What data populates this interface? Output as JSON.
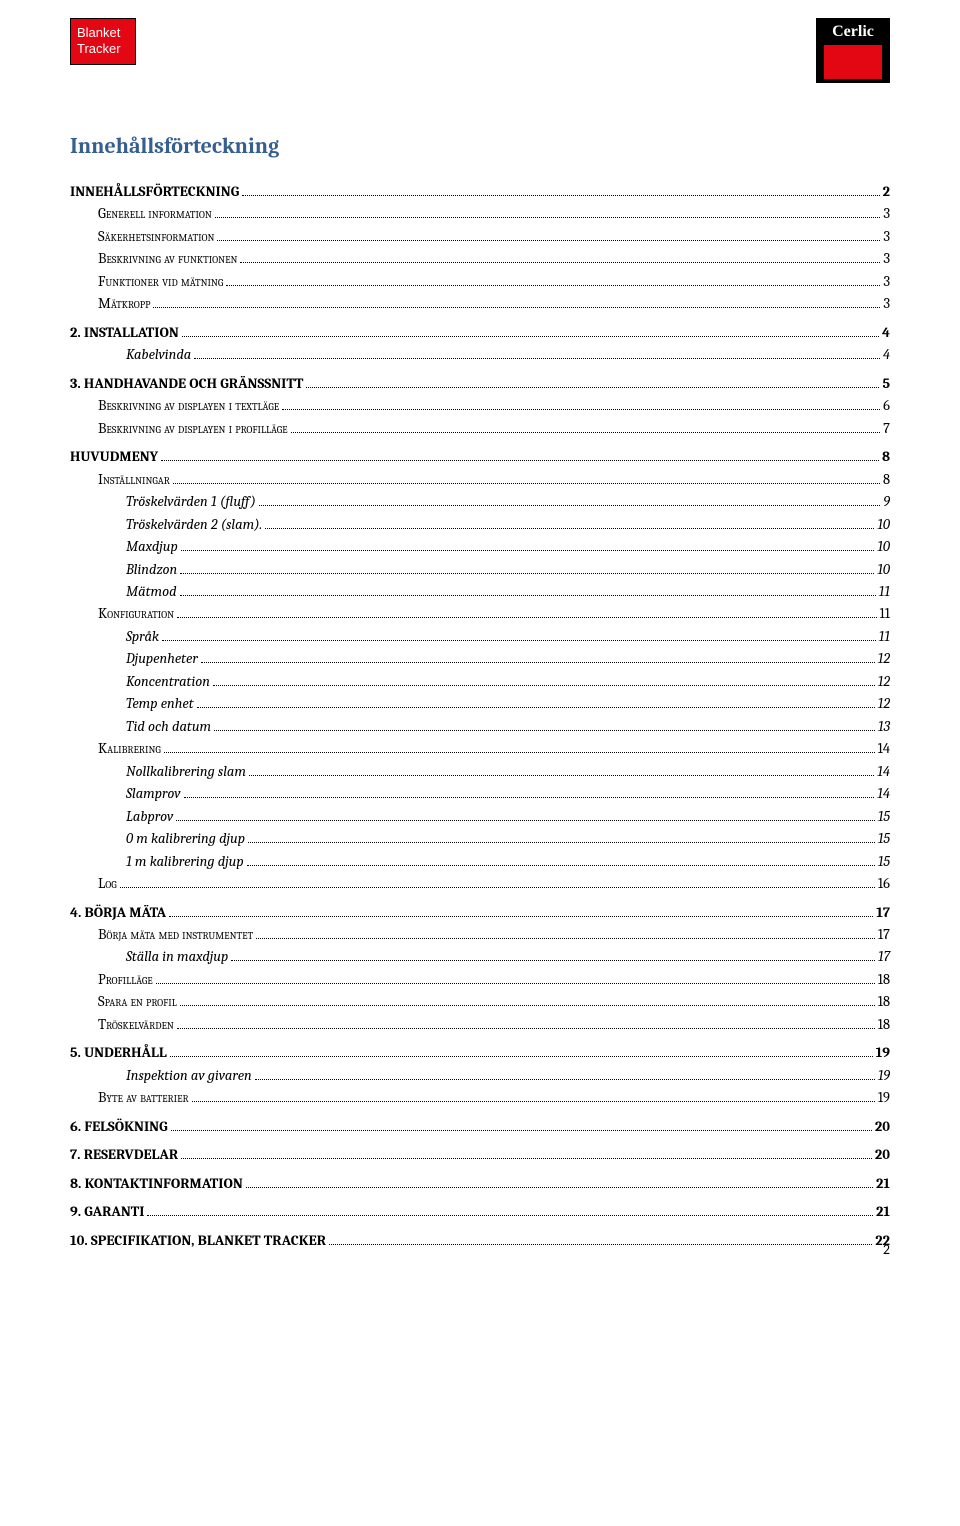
{
  "header": {
    "blanket_line1": "Blanket",
    "blanket_line2": "Tracker",
    "logo_text": "Cerlic"
  },
  "title": "Innehållsförteckning",
  "toc": [
    {
      "level": 1,
      "label": "INNEHÅLLSFÖRTECKNING",
      "page": "2"
    },
    {
      "level": 2,
      "label": "Generell information",
      "page": "3"
    },
    {
      "level": 2,
      "label": "Säkerhetsinformation",
      "page": "3"
    },
    {
      "level": 2,
      "label": "Beskrivning av funktionen",
      "page": "3"
    },
    {
      "level": 2,
      "label": "Funktioner vid mätning",
      "page": "3"
    },
    {
      "level": 2,
      "label": "Mätkropp",
      "page": "3"
    },
    {
      "level": 1,
      "label": "2. INSTALLATION",
      "page": "4"
    },
    {
      "level": 3,
      "label": "Kabelvinda",
      "page": " 4"
    },
    {
      "level": 1,
      "label": "3. HANDHAVANDE OCH GRÄNSSNITT",
      "page": "5"
    },
    {
      "level": 2,
      "label": "Beskrivning av displayen i textläge",
      "page": "6"
    },
    {
      "level": 2,
      "label": "Beskrivning av displayen i profilläge",
      "page": "7"
    },
    {
      "level": 1,
      "label": "HUVUDMENY",
      "page": "8"
    },
    {
      "level": 2,
      "label": "Inställningar",
      "page": "8"
    },
    {
      "level": 3,
      "label": "Tröskelvärden 1 (fluff)",
      "page": " 9"
    },
    {
      "level": 3,
      "label": "Tröskelvärden 2 (slam). ",
      "page": "10"
    },
    {
      "level": 3,
      "label": "Maxdjup",
      "page": "10"
    },
    {
      "level": 3,
      "label": "Blindzon",
      "page": "10"
    },
    {
      "level": 3,
      "label": "Mätmod",
      "page": "11"
    },
    {
      "level": 2,
      "label": "Konfiguration",
      "page": "11"
    },
    {
      "level": 3,
      "label": "Språk",
      "page": "11"
    },
    {
      "level": 3,
      "label": "Djupenheter",
      "page": "12"
    },
    {
      "level": 3,
      "label": "Koncentration",
      "page": "12"
    },
    {
      "level": 3,
      "label": "Temp enhet",
      "page": "12"
    },
    {
      "level": 3,
      "label": "Tid och datum",
      "page": "13"
    },
    {
      "level": 2,
      "label": "Kalibrering",
      "page": "14"
    },
    {
      "level": 3,
      "label": "Nollkalibrering slam",
      "page": "14"
    },
    {
      "level": 3,
      "label": "Slamprov",
      "page": "14"
    },
    {
      "level": 3,
      "label": "Labprov",
      "page": "15"
    },
    {
      "level": 3,
      "label": "0 m kalibrering djup",
      "page": "15"
    },
    {
      "level": 3,
      "label": "1 m kalibrering djup",
      "page": "15"
    },
    {
      "level": 2,
      "label": "Log",
      "page": "16"
    },
    {
      "level": 1,
      "label": "4. BÖRJA MÄTA",
      "page": " 17"
    },
    {
      "level": 2,
      "label": "Börja mäta med instrumentet",
      "page": "17"
    },
    {
      "level": 3,
      "label": "Ställa in maxdjup",
      "page": "17"
    },
    {
      "level": 2,
      "label": "Profilläge",
      "page": "18"
    },
    {
      "level": 2,
      "label": "Spara en profil",
      "page": "18"
    },
    {
      "level": 2,
      "label": "Tröskelvärden",
      "page": "18"
    },
    {
      "level": 1,
      "label": "5. UNDERHÅLL",
      "page": " 19"
    },
    {
      "level": 3,
      "label": "Inspektion av givaren",
      "page": "19"
    },
    {
      "level": 2,
      "label": "Byte av batterier",
      "page": "19"
    },
    {
      "level": 1,
      "label": "6. FELSÖKNING",
      "page": " 20"
    },
    {
      "level": 1,
      "label": "7. RESERVDELAR",
      "page": " 20"
    },
    {
      "level": 1,
      "label": "8. KONTAKTINFORMATION",
      "page": " 21"
    },
    {
      "level": 1,
      "label": "9. GARANTI",
      "page": " 21"
    },
    {
      "level": 1,
      "label": "10. SPECIFIKATION, BLANKET TRACKER",
      "page": " 22"
    }
  ],
  "page_number": "2"
}
